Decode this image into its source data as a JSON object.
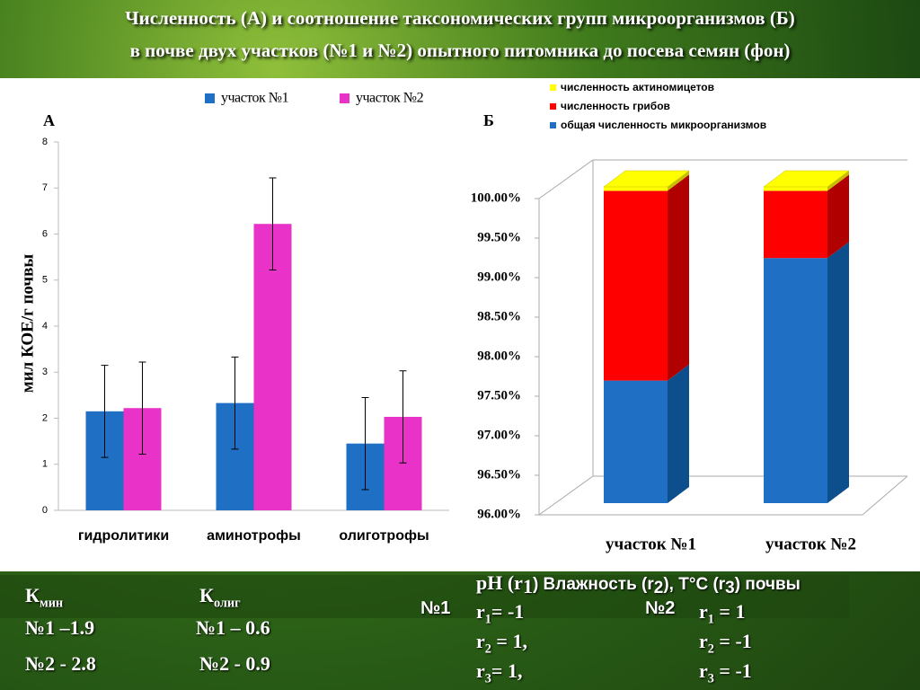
{
  "title": [
    "Численность (А) и соотношение таксономических групп микроорганизмов (Б)",
    "в почве двух участков (№1 и №2) опытного питомника  до посева семян (фон)"
  ],
  "chart_data": [
    {
      "type": "bar",
      "panel": "А",
      "y_label": "мил КОЕ/г почвы",
      "categories": [
        "гидролитики",
        "аминотрофы",
        "олиготрофы"
      ],
      "series": [
        {
          "name": "участок №1",
          "color": "#1f6fc5",
          "values": [
            2.15,
            2.33,
            1.45
          ],
          "errors": [
            1,
            1,
            1
          ]
        },
        {
          "name": "участок №2",
          "color": "#e832c8",
          "values": [
            2.22,
            6.22,
            2.03
          ],
          "errors": [
            1,
            1,
            1
          ]
        }
      ],
      "ylim": [
        0,
        8
      ],
      "yticks": [
        0,
        1,
        2,
        3,
        4,
        5,
        6,
        7,
        8
      ],
      "legend": "top"
    },
    {
      "type": "stacked_bar_3d",
      "panel": "Б",
      "categories": [
        "участок №1",
        "участок №2"
      ],
      "series": [
        {
          "name": "общая численность микроорганизмов",
          "color": "#1f6fc5",
          "side_color": "#0d4e8c",
          "values": [
            97.55,
            99.1
          ]
        },
        {
          "name": "численность грибов",
          "color": "#ff0000",
          "side_color": "#b00000",
          "values": [
            2.4,
            0.85
          ]
        },
        {
          "name": "численность актиномицетов",
          "color": "#ffff00",
          "side_color": "#c8bc00",
          "values": [
            0.05,
            0.05
          ]
        }
      ],
      "ylim": [
        96,
        100
      ],
      "yticks": [
        {
          "value": 96,
          "label": "96.00%"
        },
        {
          "value": 96.5,
          "label": "96.50%"
        },
        {
          "value": 97,
          "label": "97.00%"
        },
        {
          "value": 97.5,
          "label": "97.50%"
        },
        {
          "value": 98,
          "label": "98.00%"
        },
        {
          "value": 98.5,
          "label": "98.50%"
        },
        {
          "value": 99,
          "label": "99.00%"
        },
        {
          "value": 99.5,
          "label": "99.50%"
        },
        {
          "value": 100,
          "label": "100.00%"
        }
      ],
      "legend": "top-left"
    }
  ],
  "notes": {
    "coefficients": [
      {
        "symbol": "К",
        "sub": "мин",
        "lines": [
          "№1 –1.9",
          "№2 -  2.8"
        ]
      },
      {
        "symbol": "К",
        "sub": "олиг",
        "lines": [
          "№1 – 0.6",
          "№2 - 0.9"
        ]
      }
    ],
    "correlation": {
      "heading": [
        "pH (r",
        "1",
        ")  Влажность (r",
        "2",
        "), T°C  (r",
        "3",
        ") почвы"
      ],
      "sites": [
        {
          "label": "№1",
          "rows": [
            [
              "r",
              "1",
              "= -1"
            ],
            [
              "r",
              "2",
              " = 1,"
            ],
            [
              "r",
              "3",
              "= 1,"
            ]
          ]
        },
        {
          "label": "№2",
          "rows": [
            [
              "r",
              "1",
              " = 1"
            ],
            [
              "r",
              "2",
              " = -1"
            ],
            [
              "r",
              "3",
              " = -1"
            ]
          ]
        }
      ]
    }
  }
}
